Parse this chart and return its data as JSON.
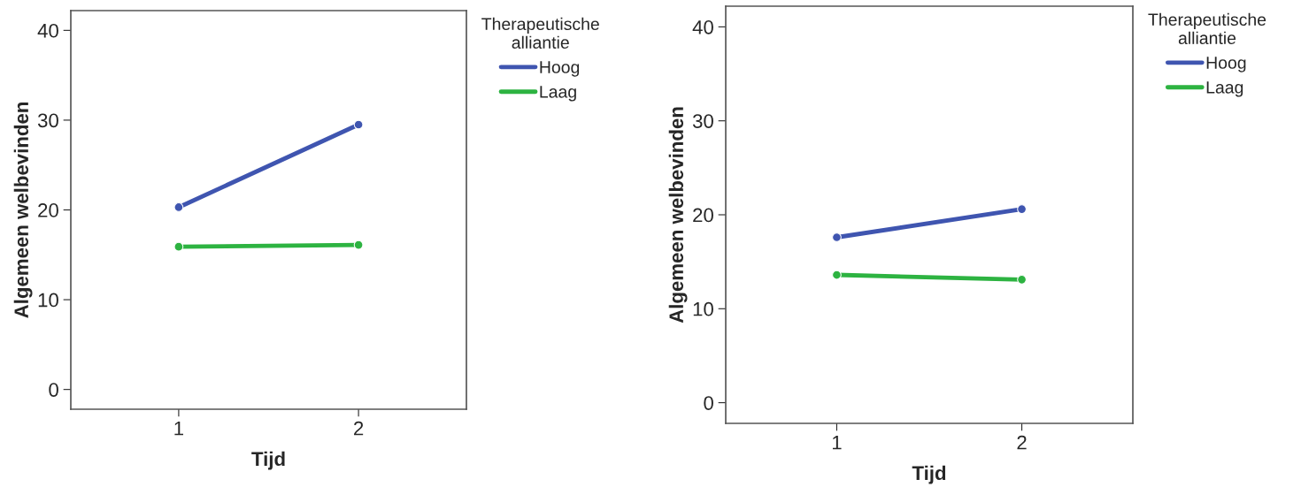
{
  "chart_data": [
    {
      "type": "line",
      "xlabel": "Tijd",
      "ylabel": "Algemeen welbevinden",
      "legend_title": "Therapeutische\nalliantie",
      "categories": [
        "1",
        "2"
      ],
      "ylim": [
        -2.2,
        42.2
      ],
      "yticks": [
        0,
        10,
        20,
        30,
        40
      ],
      "grid": false,
      "legend": "top right",
      "marker": "circle",
      "line_style": "solid",
      "series": [
        {
          "name": "Hoog",
          "color": "#3f55b0",
          "values": [
            20.3,
            29.5
          ]
        },
        {
          "name": "Laag",
          "color": "#2db341",
          "values": [
            15.9,
            16.1
          ]
        }
      ]
    },
    {
      "type": "line",
      "xlabel": "Tijd",
      "ylabel": "Algemeen welbevinden",
      "legend_title": "Therapeutische\nalliantie",
      "categories": [
        "1",
        "2"
      ],
      "ylim": [
        -2.2,
        42.2
      ],
      "yticks": [
        0,
        10,
        20,
        30,
        40
      ],
      "grid": false,
      "legend": "top right",
      "marker": "circle",
      "line_style": "solid",
      "series": [
        {
          "name": "Hoog",
          "color": "#3f55b0",
          "values": [
            17.6,
            20.6
          ]
        },
        {
          "name": "Laag",
          "color": "#2db341",
          "values": [
            13.6,
            13.1
          ]
        }
      ]
    }
  ]
}
